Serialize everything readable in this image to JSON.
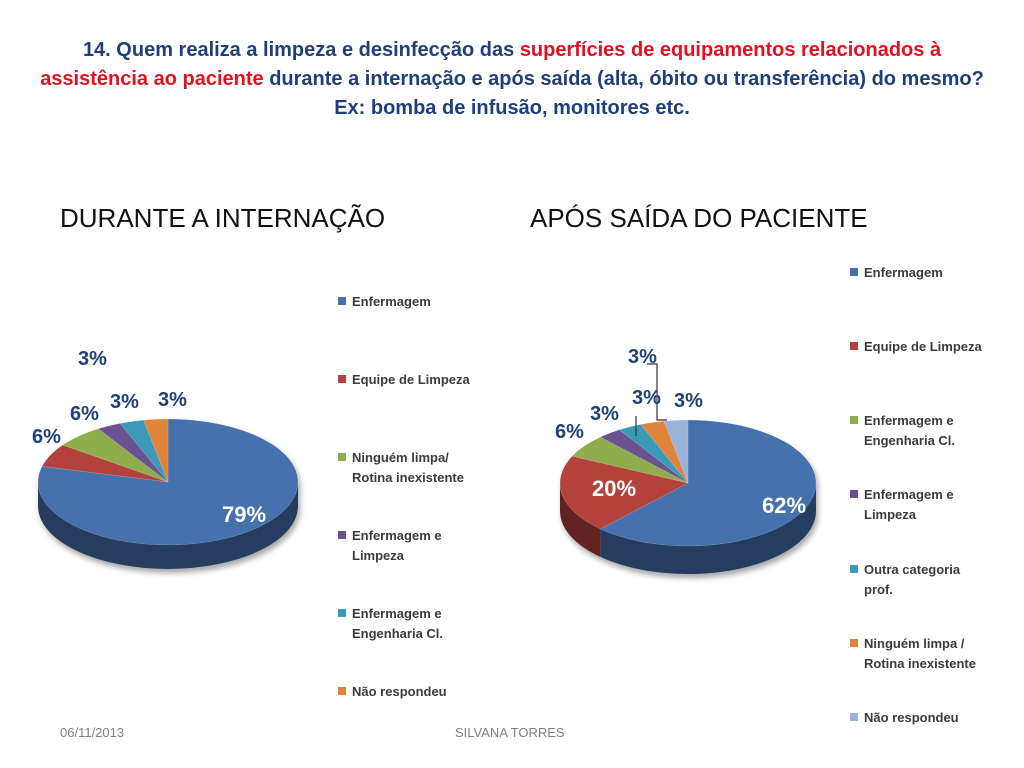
{
  "title": {
    "part1": "14. Quem realiza a limpeza e desinfecção das ",
    "highlight": "superfícies de equipamentos relacionados à assistência ao paciente",
    "part2": " durante a internação e após saída (alta, óbito ou transferência) do mesmo? Ex: bomba de infusão, monitores etc."
  },
  "colors": {
    "title": "#1f3f7a",
    "highlight": "#e3101f"
  },
  "chart_data": [
    {
      "type": "pie",
      "title": "DURANTE A INTERNAÇÃO",
      "categories": [
        "Enfermagem",
        "Equipe de Limpeza",
        "Ninguém limpa/ Rotina inexistente",
        "Enfermagem e Limpeza",
        "Enfermagem e Engenharia Cl.",
        "Não respondeu"
      ],
      "values": [
        79,
        6,
        6,
        3,
        3,
        3
      ],
      "value_labels": [
        "79%",
        "6%",
        "6%",
        "3%",
        "3%",
        "3%"
      ],
      "colors": [
        "#4471ad",
        "#b3423e",
        "#8fad4e",
        "#6a5191",
        "#3a9ab8",
        "#e0843a"
      ],
      "legend_position": "right"
    },
    {
      "type": "pie",
      "title": "APÓS SAÍDA DO PACIENTE",
      "categories": [
        "Enfermagem",
        "Equipe de Limpeza",
        "Enfermagem e Engenharia Cl.",
        "Enfermagem e Limpeza",
        "Outra categoria prof.",
        "Ninguém limpa / Rotina inexistente",
        "Não respondeu"
      ],
      "values": [
        62,
        20,
        6,
        3,
        3,
        3,
        3
      ],
      "value_labels": [
        "62%",
        "20%",
        "6%",
        "3%",
        "3%",
        "3%",
        "3%"
      ],
      "colors": [
        "#4471ad",
        "#b3423e",
        "#8fad4e",
        "#6a5191",
        "#3a9ab8",
        "#e0843a",
        "#9bb3d9"
      ],
      "legend_position": "right"
    }
  ],
  "footer": {
    "date": "06/11/2013",
    "author": "SILVANA TORRES"
  }
}
